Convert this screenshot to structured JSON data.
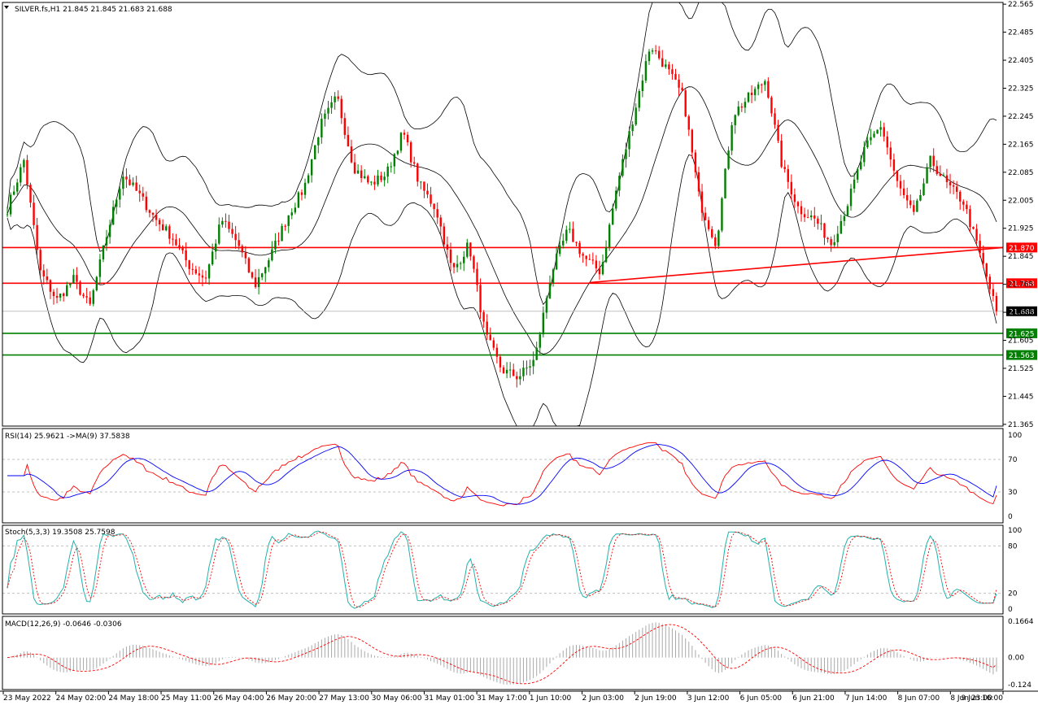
{
  "chart_data": {
    "type": "candlestick",
    "symbol_header": "SILVER.fs,H1  21.845 21.845 21.683 21.688",
    "price_ticks": [
      "22.565",
      "22.485",
      "22.405",
      "22.325",
      "22.245",
      "22.165",
      "22.085",
      "22.005",
      "21.925",
      "21.845",
      "21.765",
      "21.685",
      "21.605",
      "21.525",
      "21.445",
      "21.365"
    ],
    "price_range": [
      21.36,
      22.57
    ],
    "current_price": "21.688",
    "level_tags": [
      {
        "label": "21.870",
        "color": "#ff0000",
        "value": 21.87
      },
      {
        "label": "21.768",
        "color": "#ff0000",
        "value": 21.768
      },
      {
        "label": "21.625",
        "color": "#008000",
        "value": 21.625
      },
      {
        "label": "21.563",
        "color": "#008000",
        "value": 21.563
      }
    ],
    "trendline": {
      "from_price": 21.77,
      "to_price": 21.87,
      "color": "#ff0000"
    },
    "time_labels": [
      "23 May 2022",
      "24 May 02:00",
      "24 May 18:00",
      "25 May 11:00",
      "26 May 04:00",
      "26 May 20:00",
      "27 May 13:00",
      "30 May 06:00",
      "31 May 01:00",
      "31 May 17:00",
      "1 Jun 10:00",
      "2 Jun 03:00",
      "2 Jun 19:00",
      "3 Jun 12:00",
      "6 Jun 05:00",
      "6 Jun 21:00",
      "7 Jun 14:00",
      "8 Jun 07:00",
      "8 Jun 23:00",
      "9 Jun 16:00"
    ],
    "close_waypoints": [
      21.98,
      22.12,
      21.8,
      21.72,
      21.78,
      21.7,
      21.9,
      22.08,
      22.02,
      21.95,
      21.9,
      21.82,
      21.78,
      21.95,
      21.88,
      21.76,
      21.85,
      21.96,
      22.04,
      22.22,
      22.3,
      22.1,
      22.05,
      22.08,
      22.2,
      22.05,
      21.98,
      21.8,
      21.88,
      21.62,
      21.52,
      21.5,
      21.55,
      21.8,
      21.92,
      21.84,
      21.8,
      22.05,
      22.25,
      22.45,
      22.38,
      22.3,
      22.0,
      21.88,
      22.25,
      22.3,
      22.35,
      22.1,
      21.98,
      21.95,
      21.88,
      22.0,
      22.15,
      22.22,
      22.05,
      21.96,
      22.12,
      22.05,
      22.0,
      21.85,
      21.688
    ],
    "rsi": {
      "header": "RSI(14) 25.9621  ->MA(9) 37.5838",
      "ticks": [
        "100",
        "70",
        "30",
        "0"
      ],
      "levels": [
        30,
        70
      ],
      "last": 25.9621,
      "ma_last": 37.5838
    },
    "stoch": {
      "header": "Stoch(5,3,3) 19.3508 25.7598",
      "ticks": [
        "100",
        "80",
        "20",
        "0"
      ],
      "levels": [
        20,
        80
      ],
      "k_last": 19.3508,
      "d_last": 25.7598
    },
    "macd": {
      "header": "MACD(12,26,9) -0.0646 -0.0306",
      "ticks": [
        "0.1664",
        "0.00",
        "-0.124"
      ],
      "range": [
        -0.124,
        0.1664
      ],
      "main_last": -0.0646,
      "signal_last": -0.0306
    },
    "colors": {
      "bull": "#008000",
      "bear": "#ff0000",
      "band": "#000000",
      "rsi": "#ff0000",
      "rsi_ma": "#0000ff",
      "stoch_k": "#20b2aa",
      "stoch_d": "#ff0000",
      "macd_hist": "#a9a9a9",
      "macd_signal": "#ff0000"
    }
  }
}
